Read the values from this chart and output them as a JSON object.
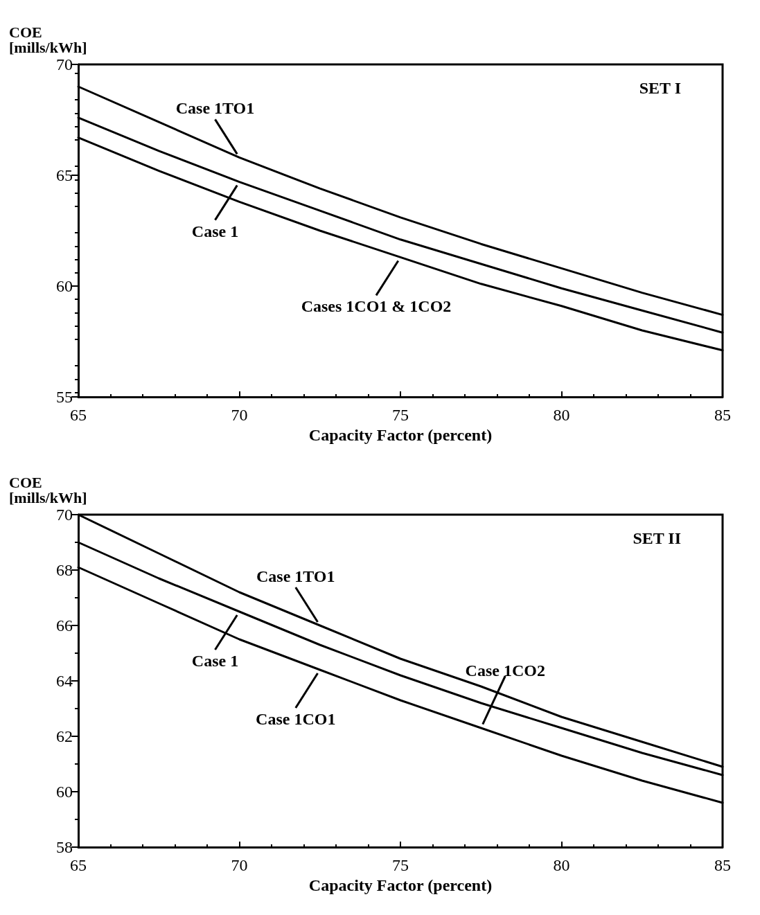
{
  "chart_data": [
    {
      "type": "line",
      "ylabel": "COE\n[mills/kWh]",
      "xlabel": "Capacity Factor (percent)",
      "x": [
        65,
        67.5,
        70,
        72.5,
        75,
        77.5,
        80,
        82.5,
        85
      ],
      "xlim": [
        65,
        85
      ],
      "xticks": [
        65,
        70,
        75,
        80,
        85
      ],
      "ylim": [
        55,
        70
      ],
      "yticks": [
        55,
        60,
        65,
        70
      ],
      "grid": false,
      "marker": "none",
      "line_style": "solid",
      "series": [
        {
          "color": "#000000",
          "values": [
            69.0,
            67.4,
            65.8,
            64.4,
            63.1,
            61.9,
            60.8,
            59.7,
            58.7
          ]
        },
        {
          "color": "#000000",
          "values": [
            67.6,
            66.1,
            64.7,
            63.4,
            62.1,
            61.0,
            59.9,
            58.9,
            57.9
          ]
        },
        {
          "color": "#000000",
          "values": [
            66.7,
            65.2,
            63.8,
            62.5,
            61.3,
            60.1,
            59.1,
            58.0,
            57.1
          ]
        }
      ],
      "annotations": [
        "SET I",
        {
          "text": "Case 1TO1",
          "x": 70,
          "y": 65.8
        },
        {
          "text": "Case 1",
          "x": 70,
          "y": 64.7
        },
        {
          "text": "Cases 1CO1 & 1CO2",
          "x": 75,
          "y": 61.3
        }
      ]
    },
    {
      "type": "line",
      "ylabel": "COE\n[mills/kWh]",
      "xlabel": "Capacity Factor (percent)",
      "x": [
        65,
        67.5,
        70,
        72.5,
        75,
        77.5,
        80,
        82.5,
        85
      ],
      "xlim": [
        65,
        85
      ],
      "xticks": [
        65,
        70,
        75,
        80,
        85
      ],
      "ylim": [
        58,
        70
      ],
      "yticks": [
        58,
        60,
        62,
        64,
        66,
        68,
        70
      ],
      "grid": false,
      "marker": "none",
      "line_style": "solid",
      "series": [
        {
          "color": "#000000",
          "values": [
            70.0,
            68.6,
            67.2,
            66.0,
            64.8,
            63.8,
            62.7,
            61.8,
            60.9
          ]
        },
        {
          "color": "#000000",
          "values": [
            69.0,
            67.7,
            66.5,
            65.3,
            64.2,
            63.2,
            62.3,
            61.4,
            60.6
          ]
        },
        {
          "color": "#000000",
          "values": [
            68.1,
            66.8,
            65.5,
            64.4,
            63.3,
            62.3,
            61.3,
            60.4,
            59.6
          ]
        }
      ],
      "annotations": [
        "SET II",
        {
          "text": "Case 1TO1",
          "x": 72.5,
          "y": 66.0
        },
        {
          "text": "Case 1",
          "x": 70,
          "y": 66.5
        },
        {
          "text": "Case 1CO1",
          "x": 72.5,
          "y": 64.4
        },
        {
          "text": "Case 1CO2",
          "x": 77.5,
          "y": 62.3
        }
      ]
    }
  ]
}
